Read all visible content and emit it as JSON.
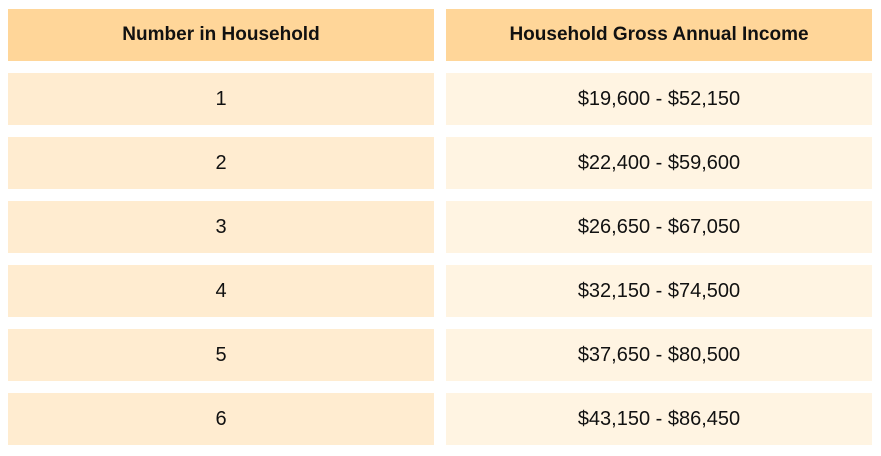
{
  "table": {
    "headers": [
      "Number in Household",
      "Household Gross Annual Income"
    ],
    "rows": [
      {
        "household": "1",
        "income": "$19,600 - $52,150"
      },
      {
        "household": "2",
        "income": "$22,400 - $59,600"
      },
      {
        "household": "3",
        "income": "$26,650 - $67,050"
      },
      {
        "household": "4",
        "income": "$32,150 - $74,500"
      },
      {
        "household": "5",
        "income": "$37,650 - $80,500"
      },
      {
        "household": "6",
        "income": "$43,150 - $86,450"
      }
    ]
  },
  "colors": {
    "header_bg": "#ffd699",
    "col1_bg": "#ffecd0",
    "col2_bg": "#fff4e2",
    "text": "#111111"
  }
}
